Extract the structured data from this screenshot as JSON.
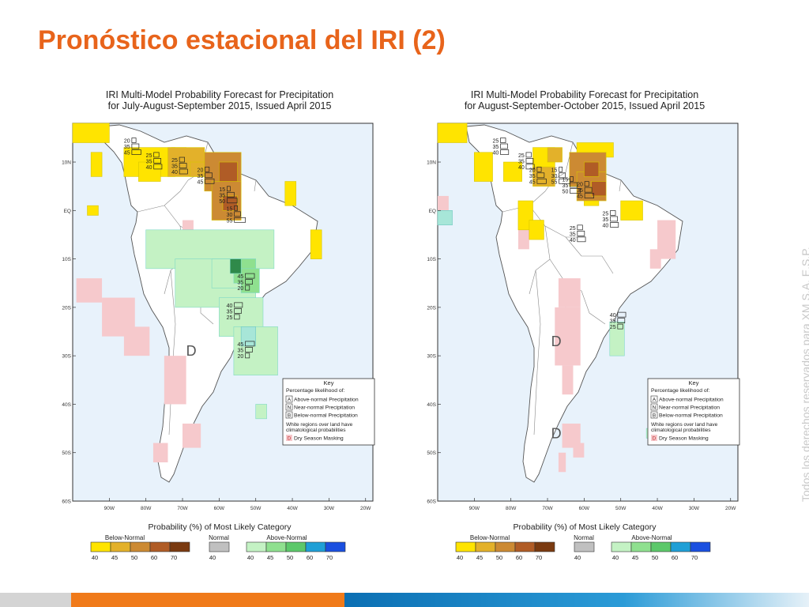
{
  "slide": {
    "title": "Pronóstico estacional del IRI (2)",
    "watermark": "Todos los derechos reservados para XM S.A. E.S.P."
  },
  "colors": {
    "title": "#e8641b",
    "ocean": "#e8f2fb",
    "dry_mask": "#f6c9cc",
    "below": [
      "#ffe400",
      "#e3b12a",
      "#cc8a33",
      "#b05c26",
      "#7a3a10"
    ],
    "normal": "#c0c0c0",
    "above": [
      "#c4f2c4",
      "#8fe08f",
      "#5cc86a",
      "#1f9fd6",
      "#1a4fe0"
    ]
  },
  "maps": [
    {
      "title_line1": "IRI Multi-Model Probability Forecast for Precipitation",
      "title_line2": "for July-August-September 2015, Issued April 2015",
      "lat_labels": [
        "10N",
        "EQ",
        "10S",
        "20S",
        "30S",
        "40S",
        "50S",
        "60S"
      ],
      "lon_labels": [
        "90W",
        "80W",
        "70W",
        "60W",
        "50W",
        "40W",
        "30W",
        "20W"
      ],
      "key": {
        "title": "Key",
        "subtitle": "Percentage likelihood of:",
        "items": [
          {
            "letter": "A",
            "text": "Above-normal Precipitation"
          },
          {
            "letter": "N",
            "text": "Near-normal Precipitation"
          },
          {
            "letter": "B",
            "text": "Below-normal Precipitation"
          }
        ],
        "white_note_1": "White regions over land have",
        "white_note_2": "climatological probabilities",
        "dry_letter": "D",
        "dry_text": "Dry Season Masking"
      },
      "dry_markers": [
        "D"
      ],
      "probability_stacks": [
        [
          "20",
          "35",
          "45"
        ],
        [
          "25",
          "35",
          "40"
        ],
        [
          "25",
          "35",
          "40"
        ],
        [
          "20",
          "35",
          "45"
        ],
        [
          "15",
          "35",
          "50"
        ],
        [
          "15",
          "30",
          "55"
        ],
        [
          "45",
          "35",
          "20"
        ],
        [
          "40",
          "35",
          "25"
        ],
        [
          "45",
          "35",
          "20"
        ]
      ],
      "legend": {
        "title": "Probability (%) of Most Likely Category",
        "below_label": "Below-Normal",
        "normal_label": "Normal",
        "above_label": "Above-Normal",
        "below_ticks": [
          "40",
          "45",
          "50",
          "60",
          "70"
        ],
        "normal_ticks": [
          "40"
        ],
        "above_ticks": [
          "40",
          "45",
          "50",
          "60",
          "70"
        ]
      }
    },
    {
      "title_line1": "IRI Multi-Model Probability Forecast for Precipitation",
      "title_line2": "for August-September-October 2015, Issued April 2015",
      "lat_labels": [
        "10N",
        "EQ",
        "10S",
        "20S",
        "30S",
        "40S",
        "50S",
        "60S"
      ],
      "lon_labels": [
        "90W",
        "80W",
        "70W",
        "60W",
        "50W",
        "40W",
        "30W",
        "20W"
      ],
      "key": {
        "title": "Key",
        "subtitle": "Percentage likelihood of:",
        "items": [
          {
            "letter": "A",
            "text": "Above-normal Precipitation"
          },
          {
            "letter": "N",
            "text": "Near-normal Precipitation"
          },
          {
            "letter": "B",
            "text": "Below-normal Precipitation"
          }
        ],
        "white_note_1": "White regions over land have",
        "white_note_2": "climatological probabilities",
        "dry_letter": "D",
        "dry_text": "Dry Season Masking"
      },
      "dry_markers": [
        "D",
        "D"
      ],
      "probability_stacks": [
        [
          "25",
          "35",
          "40"
        ],
        [
          "25",
          "35",
          "40"
        ],
        [
          "20",
          "35",
          "45"
        ],
        [
          "15",
          "30",
          "55"
        ],
        [
          "15",
          "35",
          "50"
        ],
        [
          "20",
          "35",
          "45"
        ],
        [
          "25",
          "35",
          "40"
        ],
        [
          "25",
          "35",
          "40"
        ],
        [
          "40",
          "35",
          "25"
        ]
      ],
      "legend": {
        "title": "Probability (%) of Most Likely Category",
        "below_label": "Below-Normal",
        "normal_label": "Normal",
        "above_label": "Above-Normal",
        "below_ticks": [
          "40",
          "45",
          "50",
          "60",
          "70"
        ],
        "normal_ticks": [
          "40"
        ],
        "above_ticks": [
          "40",
          "45",
          "50",
          "60",
          "70"
        ]
      }
    }
  ]
}
